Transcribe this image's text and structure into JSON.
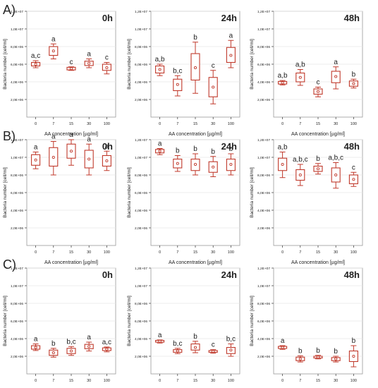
{
  "row_labels": [
    "A)",
    "B)",
    "C)"
  ],
  "chart_data": [
    {
      "type": "box",
      "row": "A)",
      "title": "0h",
      "xlabel": "AA concentration [µg/ml]",
      "ylabel": "Bacteria number [cell/ml]",
      "categories": [
        "0",
        "7",
        "15",
        "30",
        "100"
      ],
      "ylim": [
        0,
        12000000
      ],
      "yticks": [
        2000000,
        4000000,
        6000000,
        8000000,
        10000000,
        12000000
      ],
      "ytick_labels": [
        "2,0E+06",
        "4,0E+06",
        "6,0E+06",
        "8,0E+06",
        "1,0E+07",
        "1,2E+07"
      ],
      "boxes": [
        {
          "mean": 6000000,
          "q1": 5800000,
          "q3": 6200000,
          "min": 5600000,
          "max": 6400000
        },
        {
          "mean": 7500000,
          "q1": 7000000,
          "q3": 8000000,
          "min": 6600000,
          "max": 8300000
        },
        {
          "mean": 5500000,
          "q1": 5350000,
          "q3": 5650000,
          "min": 5300000,
          "max": 5700000
        },
        {
          "mean": 6100000,
          "q1": 5850000,
          "q3": 6350000,
          "min": 5600000,
          "max": 6600000
        },
        {
          "mean": 5600000,
          "q1": 5300000,
          "q3": 6000000,
          "min": 4900000,
          "max": 6200000
        }
      ],
      "letters": [
        "a,c",
        "a",
        "c",
        "a",
        "c"
      ]
    },
    {
      "type": "box",
      "row": "A)",
      "title": "24h",
      "xlabel": "AA concentration [µg/ml]",
      "ylabel": "Bacteria number [cell/ml]",
      "categories": [
        "0",
        "7",
        "15",
        "30",
        "100"
      ],
      "ylim": [
        0,
        12000000
      ],
      "yticks": [
        2000000,
        4000000,
        6000000,
        8000000,
        10000000,
        12000000
      ],
      "ytick_labels": [
        "2,0E+06",
        "4,0E+06",
        "6,0E+06",
        "8,0E+06",
        "1,0E+07",
        "1,2E+07"
      ],
      "boxes": [
        {
          "mean": 5400000,
          "q1": 5000000,
          "q3": 5800000,
          "min": 4700000,
          "max": 6000000
        },
        {
          "mean": 3700000,
          "q1": 3000000,
          "q3": 4300000,
          "min": 2400000,
          "max": 4700000
        },
        {
          "mean": 5600000,
          "q1": 4200000,
          "q3": 7200000,
          "min": 2700000,
          "max": 8500000
        },
        {
          "mean": 3400000,
          "q1": 2300000,
          "q3": 4500000,
          "min": 1500000,
          "max": 5300000
        },
        {
          "mean": 7000000,
          "q1": 6200000,
          "q3": 7900000,
          "min": 5600000,
          "max": 8700000
        }
      ],
      "letters": [
        "a,b",
        "b,c",
        "b",
        "c",
        "a"
      ]
    },
    {
      "type": "box",
      "row": "A)",
      "title": "48h",
      "xlabel": "AA concentration [µg/ml]",
      "ylabel": "Bacteria number [cell/ml]",
      "categories": [
        "0",
        "7",
        "15",
        "30",
        "100"
      ],
      "ylim": [
        0,
        12000000
      ],
      "yticks": [
        2000000,
        4000000,
        6000000,
        8000000,
        10000000,
        12000000
      ],
      "ytick_labels": [
        "2,0E+06",
        "4,0E+06",
        "6,0E+06",
        "8,0E+06",
        "1,0E+07",
        "1,2E+07"
      ],
      "boxes": [
        {
          "mean": 3900000,
          "q1": 3750000,
          "q3": 4050000,
          "min": 3650000,
          "max": 4150000
        },
        {
          "mean": 4500000,
          "q1": 4000000,
          "q3": 5000000,
          "min": 3600000,
          "max": 5400000
        },
        {
          "mean": 2900000,
          "q1": 2600000,
          "q3": 3200000,
          "min": 2300000,
          "max": 3400000
        },
        {
          "mean": 4600000,
          "q1": 3900000,
          "q3": 5200000,
          "min": 3200000,
          "max": 5700000
        },
        {
          "mean": 3800000,
          "q1": 3500000,
          "q3": 4100000,
          "min": 3300000,
          "max": 4300000
        }
      ],
      "letters": [
        "a,b",
        "a,b",
        "c",
        "a",
        "b"
      ]
    },
    {
      "type": "box",
      "row": "B)",
      "title": "0h",
      "xlabel": "AA concentration [µg/ml]",
      "ylabel": "Bacteria number [cell/ml]",
      "categories": [
        "0",
        "7",
        "15",
        "30",
        "100"
      ],
      "ylim": [
        0,
        12000000
      ],
      "yticks": [
        2000000,
        4000000,
        6000000,
        8000000,
        10000000,
        12000000
      ],
      "ytick_labels": [
        "2,0E+06",
        "4,0E+06",
        "6,0E+06",
        "8,0E+06",
        "1,0E+07",
        "1,2E+07"
      ],
      "boxes": [
        {
          "mean": 9700000,
          "q1": 9100000,
          "q3": 10300000,
          "min": 8700000,
          "max": 10600000
        },
        {
          "mean": 10000000,
          "q1": 9000000,
          "q3": 11100000,
          "min": 8000000,
          "max": 11800000
        },
        {
          "mean": 10700000,
          "q1": 9900000,
          "q3": 11500000,
          "min": 9100000,
          "max": 12000000
        },
        {
          "mean": 9800000,
          "q1": 8800000,
          "q3": 10800000,
          "min": 8000000,
          "max": 11500000
        },
        {
          "mean": 9600000,
          "q1": 9000000,
          "q3": 10200000,
          "min": 8500000,
          "max": 10700000
        }
      ],
      "letters": [
        "a",
        "a",
        "a",
        "a",
        "a"
      ]
    },
    {
      "type": "box",
      "row": "B)",
      "title": "24h",
      "xlabel": "AA concentration [µg/ml]",
      "ylabel": "Bacteria number [cell/ml]",
      "categories": [
        "0",
        "7",
        "15",
        "30",
        "100"
      ],
      "ylim": [
        0,
        12000000
      ],
      "yticks": [
        2000000,
        4000000,
        6000000,
        8000000,
        10000000,
        12000000
      ],
      "ytick_labels": [
        "2,0E+06",
        "4,0E+06",
        "6,0E+06",
        "8,0E+06",
        "1,0E+07",
        "1,2E+07"
      ],
      "boxes": [
        {
          "mean": 10700000,
          "q1": 10500000,
          "q3": 10900000,
          "min": 10300000,
          "max": 11000000
        },
        {
          "mean": 9300000,
          "q1": 8800000,
          "q3": 9800000,
          "min": 8400000,
          "max": 10200000
        },
        {
          "mean": 9200000,
          "q1": 8500000,
          "q3": 9800000,
          "min": 8000000,
          "max": 10400000
        },
        {
          "mean": 8900000,
          "q1": 8300000,
          "q3": 9500000,
          "min": 7800000,
          "max": 10100000
        },
        {
          "mean": 9200000,
          "q1": 8500000,
          "q3": 9800000,
          "min": 8000000,
          "max": 10400000
        }
      ],
      "letters": [
        "a",
        "b",
        "b",
        "b",
        "b"
      ]
    },
    {
      "type": "box",
      "row": "B)",
      "title": "48h",
      "xlabel": "AA concentration [µg/ml]",
      "ylabel": "Bacteria number [cell/ml]",
      "categories": [
        "0",
        "7",
        "15",
        "30",
        "100"
      ],
      "ylim": [
        0,
        12000000
      ],
      "yticks": [
        2000000,
        4000000,
        6000000,
        8000000,
        10000000,
        12000000
      ],
      "ytick_labels": [
        "2,0E+06",
        "4,0E+06",
        "6,0E+06",
        "8,0E+06",
        "1,0E+07",
        "1,2E+07"
      ],
      "boxes": [
        {
          "mean": 9200000,
          "q1": 8500000,
          "q3": 9900000,
          "min": 7700000,
          "max": 10600000
        },
        {
          "mean": 8000000,
          "q1": 7400000,
          "q3": 8600000,
          "min": 6800000,
          "max": 9200000
        },
        {
          "mean": 8700000,
          "q1": 8400000,
          "q3": 9000000,
          "min": 8100000,
          "max": 9300000
        },
        {
          "mean": 8000000,
          "q1": 7200000,
          "q3": 8800000,
          "min": 6500000,
          "max": 9400000
        },
        {
          "mean": 7500000,
          "q1": 7000000,
          "q3": 8000000,
          "min": 6700000,
          "max": 8300000
        }
      ],
      "letters": [
        "a,b",
        "a,b,c",
        "b",
        "a,b,c",
        "c"
      ]
    },
    {
      "type": "box",
      "row": "C)",
      "title": "0h",
      "xlabel": "AA concentration [µg/ml]",
      "ylabel": "Bacteria number [cell/ml]",
      "categories": [
        "0",
        "7",
        "15",
        "30",
        "100"
      ],
      "ylim": [
        0,
        12000000
      ],
      "yticks": [
        2000000,
        4000000,
        6000000,
        8000000,
        10000000,
        12000000
      ],
      "ytick_labels": [
        "2,0E+06",
        "4,0E+06",
        "6,0E+06",
        "8,0E+06",
        "1,0E+07",
        "1,2E+07"
      ],
      "boxes": [
        {
          "mean": 3000000,
          "q1": 2800000,
          "q3": 3200000,
          "min": 2650000,
          "max": 3400000
        },
        {
          "mean": 2400000,
          "q1": 2100000,
          "q3": 2700000,
          "min": 1900000,
          "max": 2900000
        },
        {
          "mean": 2600000,
          "q1": 2300000,
          "q3": 2900000,
          "min": 2100000,
          "max": 3100000
        },
        {
          "mean": 3100000,
          "q1": 2850000,
          "q3": 3350000,
          "min": 2600000,
          "max": 3600000
        },
        {
          "mean": 2800000,
          "q1": 2650000,
          "q3": 2950000,
          "min": 2500000,
          "max": 3050000
        }
      ],
      "letters": [
        "a",
        "b",
        "b,c",
        "a",
        "a,c"
      ]
    },
    {
      "type": "box",
      "row": "C)",
      "title": "24h",
      "xlabel": "AA concentration [µg/ml]",
      "ylabel": "Bacteria number [cell/ml]",
      "categories": [
        "0",
        "7",
        "15",
        "30",
        "100"
      ],
      "ylim": [
        0,
        12000000
      ],
      "yticks": [
        2000000,
        4000000,
        6000000,
        8000000,
        10000000,
        12000000
      ],
      "ytick_labels": [
        "2,0E+06",
        "4,0E+06",
        "6,0E+06",
        "8,0E+06",
        "1,0E+07",
        "1,2E+07"
      ],
      "boxes": [
        {
          "mean": 3700000,
          "q1": 3600000,
          "q3": 3800000,
          "min": 3500000,
          "max": 3850000
        },
        {
          "mean": 2600000,
          "q1": 2450000,
          "q3": 2750000,
          "min": 2300000,
          "max": 2900000
        },
        {
          "mean": 3000000,
          "q1": 2700000,
          "q3": 3400000,
          "min": 2400000,
          "max": 3700000
        },
        {
          "mean": 2550000,
          "q1": 2450000,
          "q3": 2650000,
          "min": 2350000,
          "max": 2750000
        },
        {
          "mean": 2700000,
          "q1": 2300000,
          "q3": 3000000,
          "min": 2000000,
          "max": 3400000
        }
      ],
      "letters": [
        "a",
        "b,c",
        "b",
        "c",
        "b,c"
      ]
    },
    {
      "type": "box",
      "row": "C)",
      "title": "48h",
      "xlabel": "AA concentration [µg/ml]",
      "ylabel": "Bacteria number [cell/ml]",
      "categories": [
        "0",
        "7",
        "15",
        "30",
        "100"
      ],
      "ylim": [
        0,
        12000000
      ],
      "yticks": [
        2000000,
        4000000,
        6000000,
        8000000,
        10000000,
        12000000
      ],
      "ytick_labels": [
        "2,0E+06",
        "4,0E+06",
        "6,0E+06",
        "8,0E+06",
        "1,0E+07",
        "1,2E+07"
      ],
      "boxes": [
        {
          "mean": 3000000,
          "q1": 2880000,
          "q3": 3120000,
          "min": 2780000,
          "max": 3200000
        },
        {
          "mean": 1700000,
          "q1": 1500000,
          "q3": 1900000,
          "min": 1350000,
          "max": 2050000
        },
        {
          "mean": 1900000,
          "q1": 1800000,
          "q3": 2000000,
          "min": 1700000,
          "max": 2100000
        },
        {
          "mean": 1700000,
          "q1": 1500000,
          "q3": 1850000,
          "min": 1350000,
          "max": 2000000
        },
        {
          "mean": 2000000,
          "q1": 1400000,
          "q3": 2600000,
          "min": 800000,
          "max": 3200000
        }
      ],
      "letters": [
        "a",
        "b",
        "b",
        "b",
        "b"
      ]
    }
  ],
  "colors": {
    "box": "#c0392b",
    "axis": "#333333",
    "grid": "#e6e6e6",
    "text": "#222222"
  }
}
